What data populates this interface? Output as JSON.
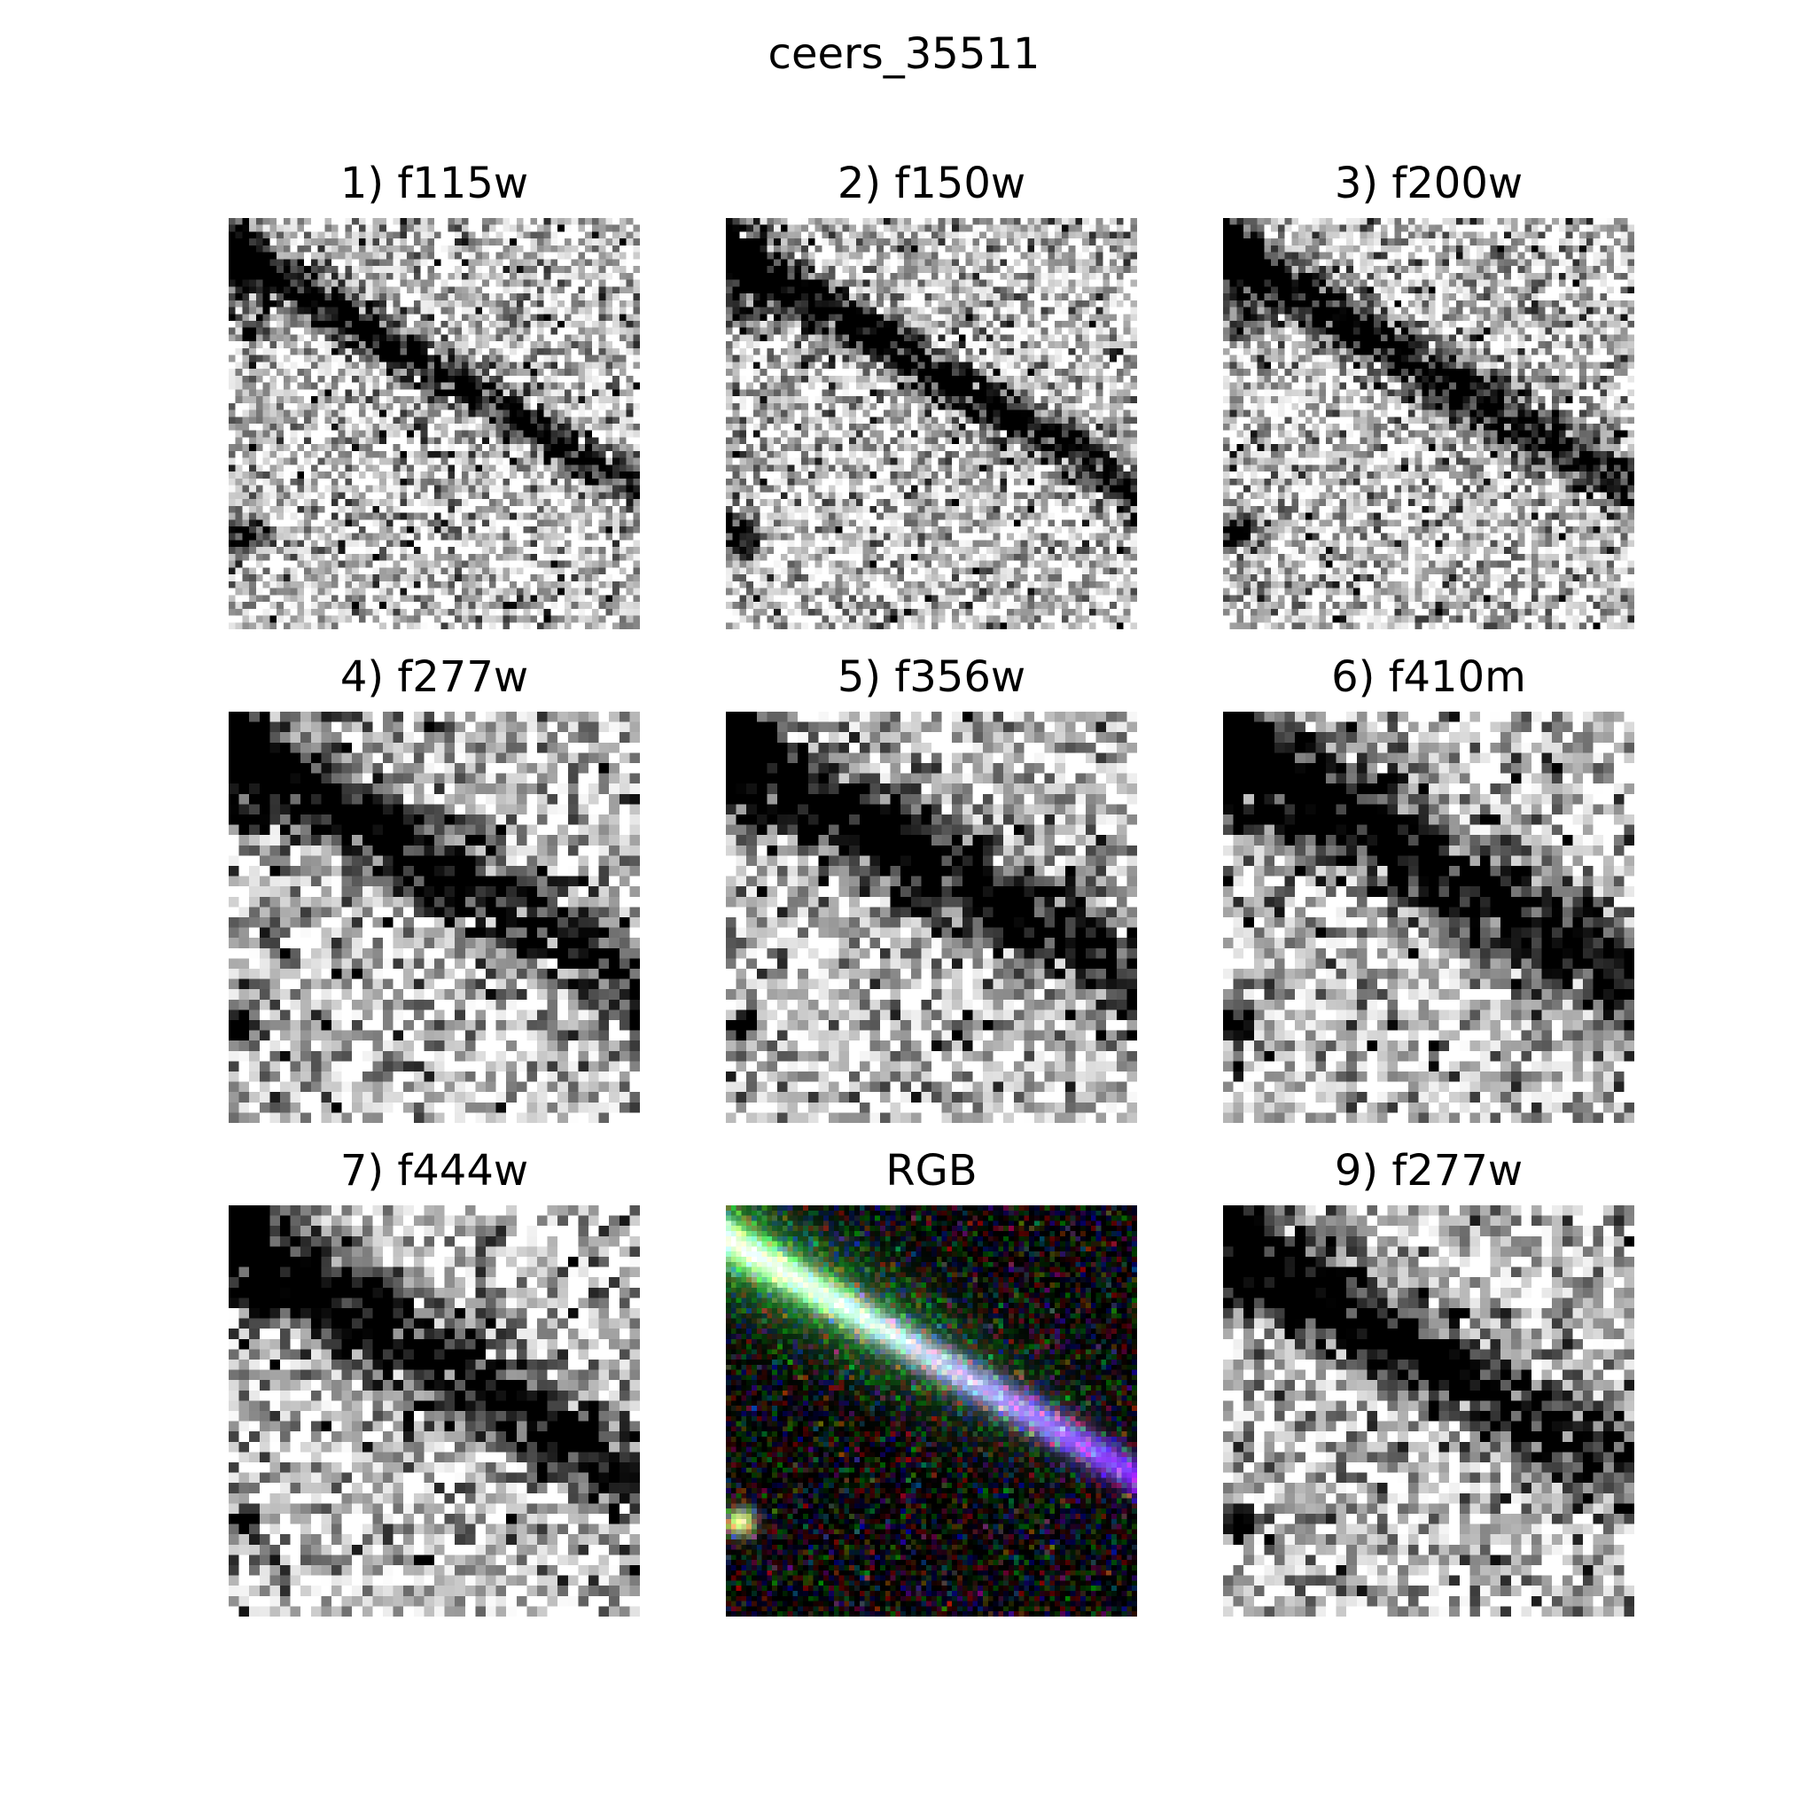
{
  "figure": {
    "title": "ceers_35511"
  },
  "panels": [
    {
      "title": "1) f115w",
      "kind": "grayscale",
      "icon": "f115w-cutout-image"
    },
    {
      "title": "2) f150w",
      "kind": "grayscale",
      "icon": "f150w-cutout-image"
    },
    {
      "title": "3) f200w",
      "kind": "grayscale",
      "icon": "f200w-cutout-image"
    },
    {
      "title": "4) f277w",
      "kind": "grayscale",
      "icon": "f277w-cutout-image"
    },
    {
      "title": "5) f356w",
      "kind": "grayscale",
      "icon": "f356w-cutout-image"
    },
    {
      "title": "6) f410m",
      "kind": "grayscale",
      "icon": "f410m-cutout-image"
    },
    {
      "title": "7) f444w",
      "kind": "grayscale",
      "icon": "f444w-cutout-image"
    },
    {
      "title": "RGB",
      "kind": "rgb",
      "icon": "rgb-composite-image"
    },
    {
      "title": "9) f277w",
      "kind": "grayscale",
      "icon": "f277w-cutout-image"
    }
  ]
}
